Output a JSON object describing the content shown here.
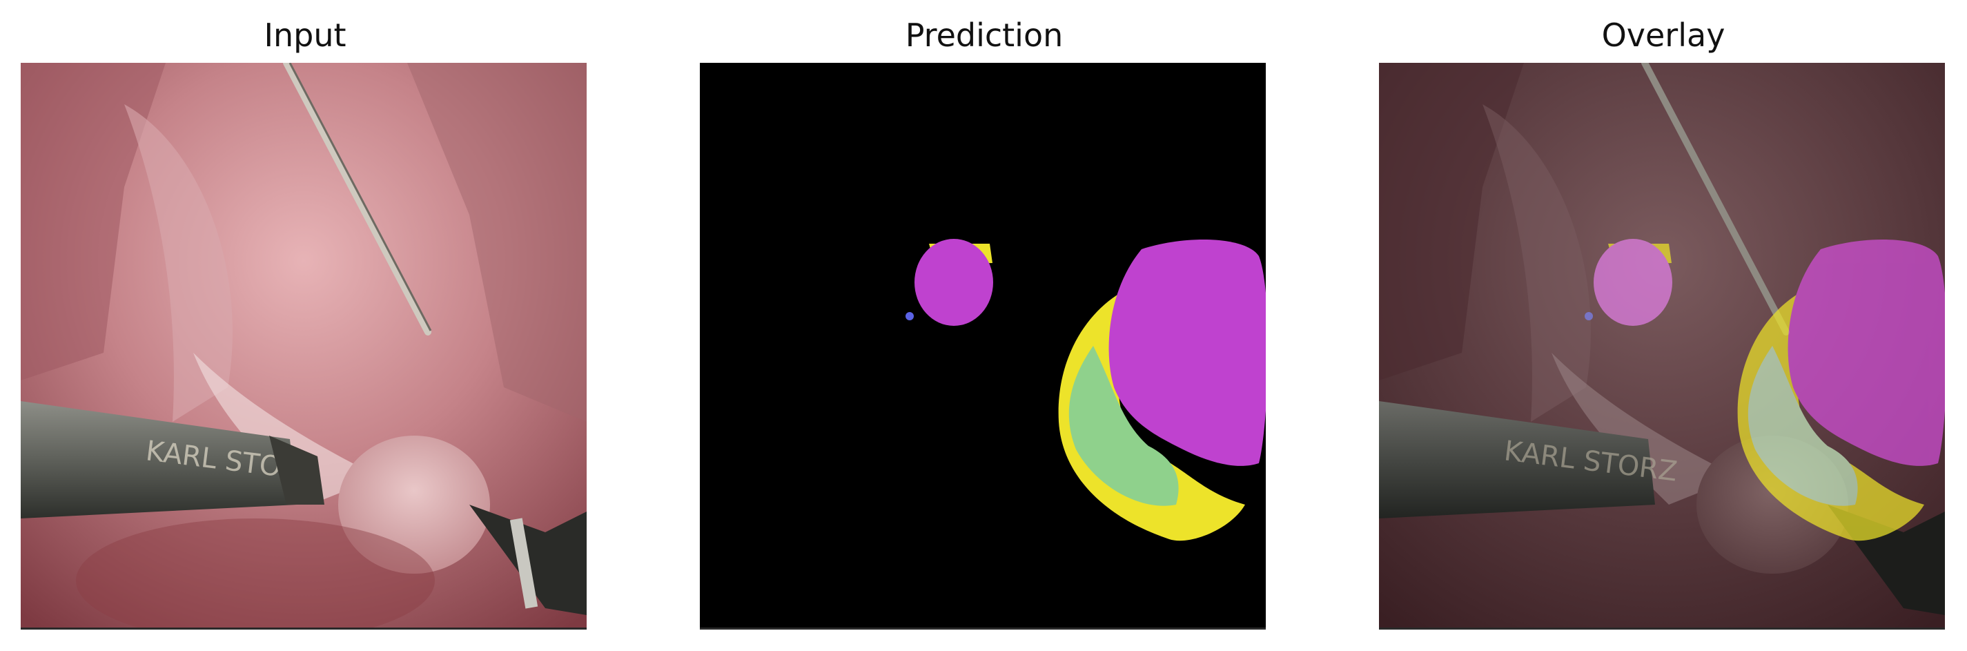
{
  "panels": {
    "input": {
      "title": "Input"
    },
    "prediction": {
      "title": "Prediction"
    },
    "overlay": {
      "title": "Overlay"
    }
  },
  "instrument_text": "KARL STORZ",
  "colors": {
    "background": "#000000",
    "class_magenta": "#bf42cf",
    "class_green": "#8fd18c",
    "class_yellow": "#ede32a",
    "class_blue": "#5b63e6",
    "tissue": "#b9757a",
    "overlay_dim": "#3b2426"
  }
}
